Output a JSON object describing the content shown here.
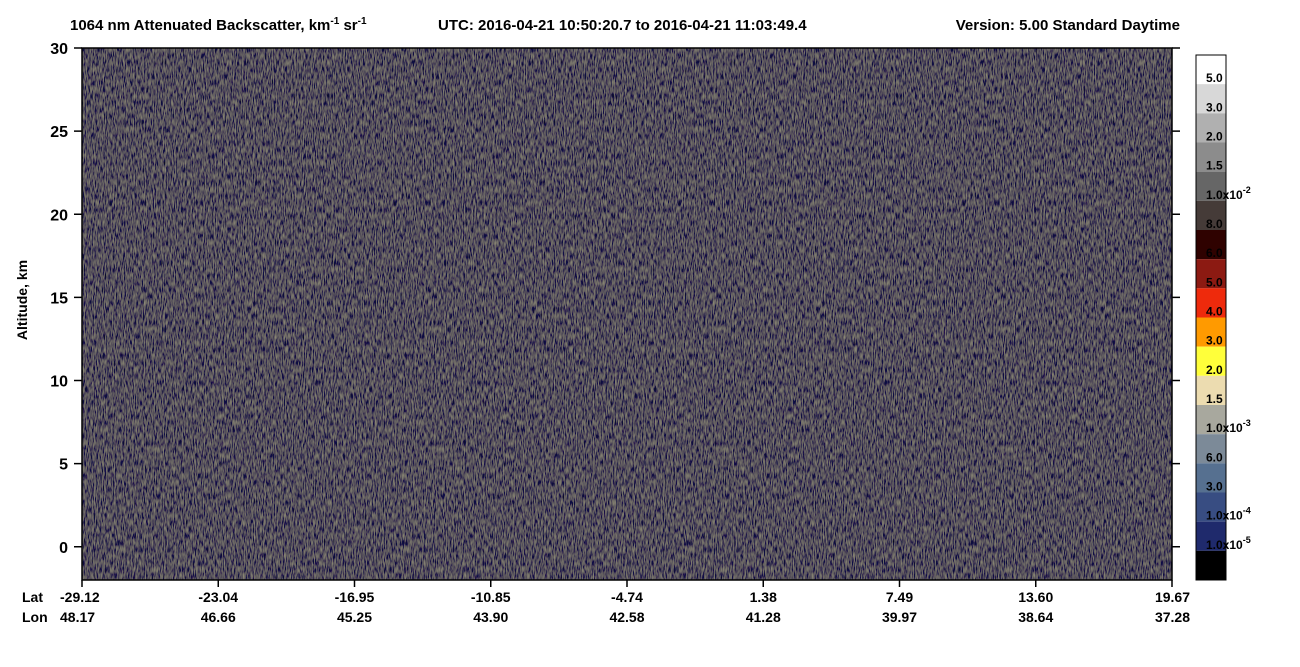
{
  "chart_data": {
    "type": "heatmap",
    "title_segments": [
      {
        "text": "1064 nm Attenuated Backscatter, km"
      },
      {
        "text": "-1",
        "sup": true
      },
      {
        "text": " sr"
      },
      {
        "text": "-1",
        "sup": true
      }
    ],
    "utc": "UTC:  2016-04-21 10:50:20.7  to  2016-04-21 11:03:49.4",
    "version": "Version: 5.00  Standard  Daytime",
    "ylabel": "Altitude, km",
    "ylim": [
      -2,
      30
    ],
    "yticks": [
      0,
      5,
      10,
      15,
      20,
      25,
      30
    ],
    "x_row_labels": [
      "Lat",
      "Lon"
    ],
    "categories": [
      [
        "-29.12",
        "48.17"
      ],
      [
        "-23.04",
        "46.66"
      ],
      [
        "-16.95",
        "45.25"
      ],
      [
        "-10.85",
        "43.90"
      ],
      [
        "-4.74",
        "42.58"
      ],
      [
        "1.38",
        "41.28"
      ],
      [
        "7.49",
        "39.97"
      ],
      [
        "13.60",
        "38.64"
      ],
      [
        "19.67",
        "37.28"
      ]
    ],
    "colorbar": {
      "colors": [
        "#ffffff",
        "#d8d8d8",
        "#b0b0b0",
        "#8c8c8c",
        "#666666",
        "#453b38",
        "#2f0200",
        "#8c1a12",
        "#ee2a0c",
        "#ff9a00",
        "#ffff3a",
        "#ecdcb0",
        "#a8a89e",
        "#7c8a98",
        "#567090",
        "#384d82",
        "#1f2a6c",
        "#000000"
      ],
      "labels": [
        {
          "text": "5.0"
        },
        {
          "text": "3.0"
        },
        {
          "text": "2.0"
        },
        {
          "text": "1.5"
        },
        {
          "text": "1.0x10",
          "exp": "-2"
        },
        {
          "text": "8.0"
        },
        {
          "text": "6.0"
        },
        {
          "text": "5.0"
        },
        {
          "text": "4.0"
        },
        {
          "text": "3.0"
        },
        {
          "text": "2.0"
        },
        {
          "text": "1.5"
        },
        {
          "text": "1.0x10",
          "exp": "-3"
        },
        {
          "text": "6.0"
        },
        {
          "text": "3.0"
        },
        {
          "text": "1.0x10",
          "exp": "-4"
        },
        {
          "text": "1.0x10",
          "exp": "-5"
        }
      ]
    }
  }
}
